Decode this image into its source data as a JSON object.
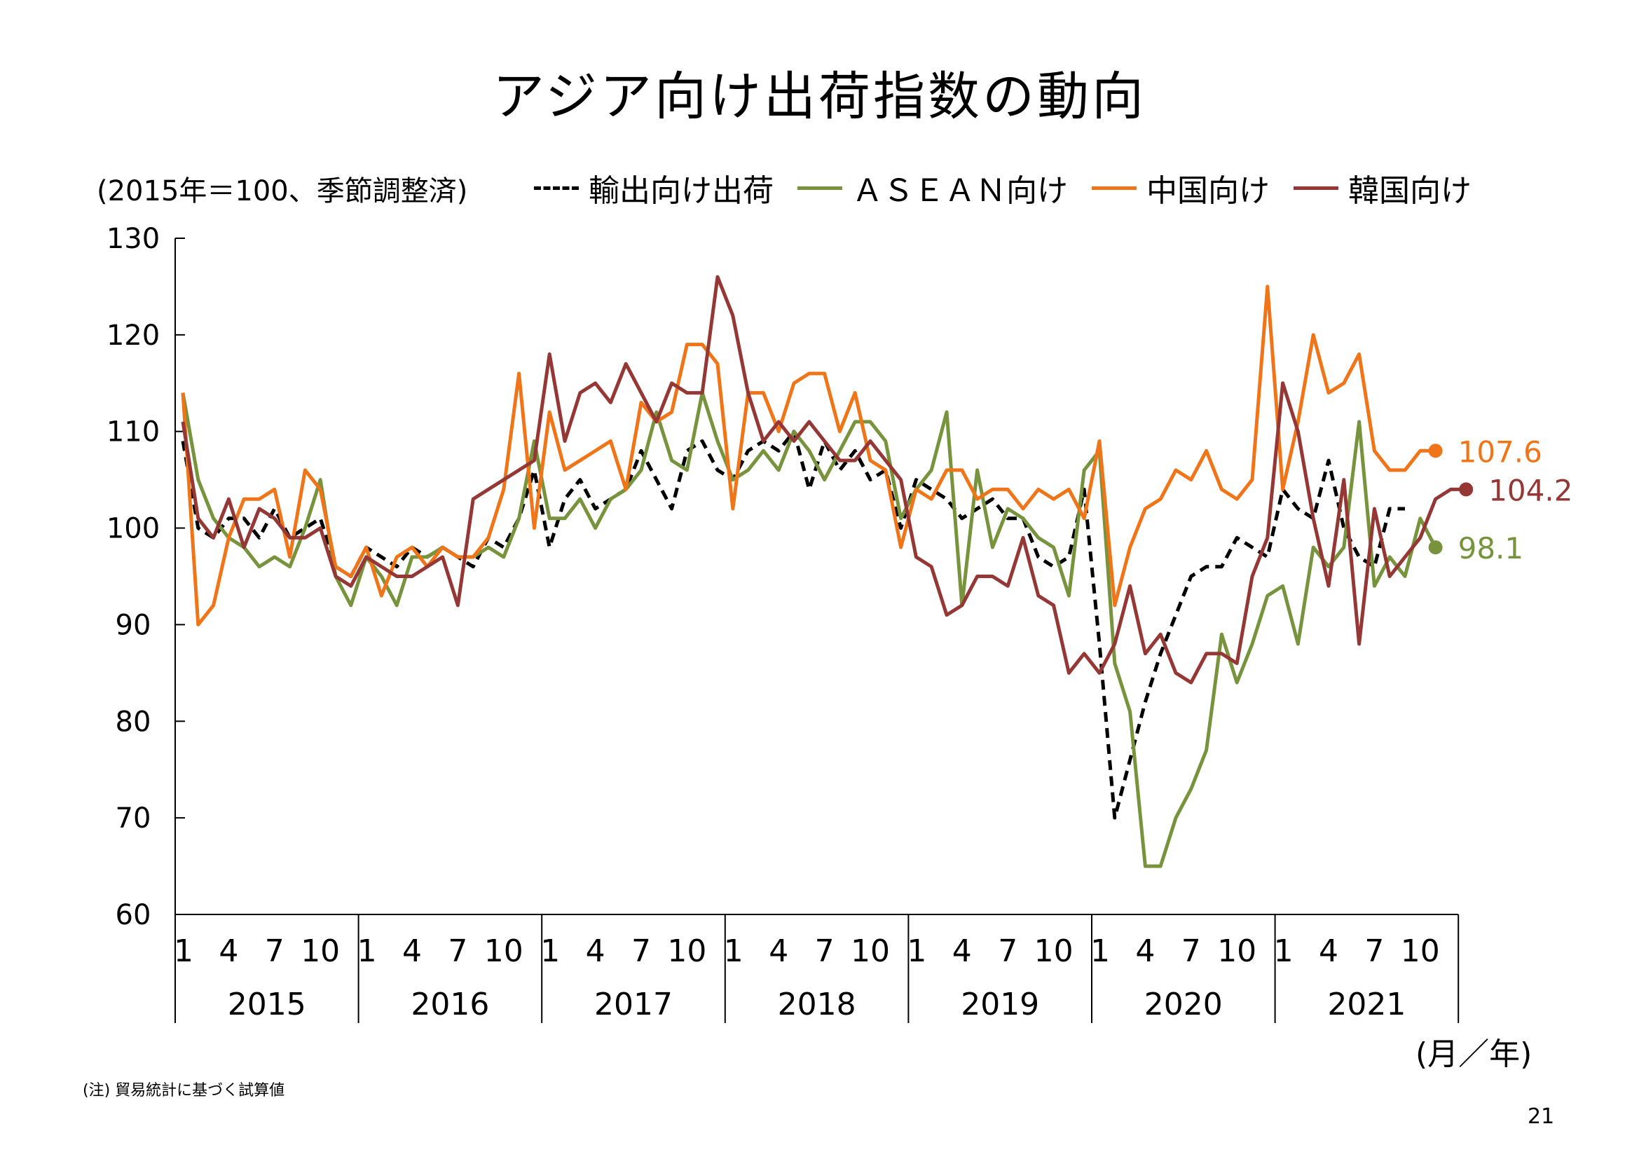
{
  "slide": {
    "title": "アジア向け出荷指数の動向",
    "unit_label": "(2015年＝100、季節調整済)",
    "x_unit_label": "(月／年)",
    "note": "(注) 貿易統計に基づく試算値",
    "page_number": "21"
  },
  "chart_data": {
    "type": "line",
    "title": "アジア向け出荷指数の動向",
    "ylabel": "(2015年＝100、季節調整済)",
    "xlabel": "(月／年)",
    "ylim": [
      60,
      130
    ],
    "yticks": [
      "60",
      "70",
      "80",
      "90",
      "100",
      "110",
      "120",
      "130"
    ],
    "month_tick_labels": [
      "1",
      "4",
      "7",
      "10"
    ],
    "years": [
      "2015",
      "2016",
      "2017",
      "2018",
      "2019",
      "2020",
      "2021"
    ],
    "grid": false,
    "legend_position": "top",
    "series": [
      {
        "name": "輸出向け出荷",
        "color": "#000000",
        "dash": true,
        "end_label": "",
        "values": [
          109,
          100,
          99,
          101,
          101,
          99,
          102,
          99,
          100,
          101,
          96,
          95,
          98,
          97,
          96,
          98,
          97,
          98,
          97,
          96,
          99,
          98,
          101,
          106,
          98,
          103,
          105,
          102,
          103,
          104,
          108,
          105,
          102,
          108,
          109,
          106,
          105,
          108,
          109,
          108,
          110,
          104,
          109,
          106,
          108,
          105,
          106,
          100,
          105,
          104,
          103,
          101,
          102,
          103,
          101,
          101,
          97,
          96,
          97,
          104,
          88,
          70,
          76,
          82,
          87,
          91,
          95,
          96,
          96,
          99,
          98,
          97,
          104,
          102,
          101,
          107,
          100,
          97,
          96,
          102,
          102
        ]
      },
      {
        "name": "ＡＳＥＡＮ向け",
        "color": "#77933C",
        "dash": false,
        "end_label": "98.1",
        "values": [
          114,
          105,
          101,
          99,
          98,
          96,
          97,
          96,
          100,
          105,
          95,
          92,
          97,
          95,
          92,
          97,
          97,
          98,
          97,
          97,
          98,
          97,
          101,
          109,
          101,
          101,
          103,
          100,
          103,
          104,
          106,
          112,
          107,
          106,
          114,
          109,
          105,
          106,
          108,
          106,
          110,
          108,
          105,
          108,
          111,
          111,
          109,
          101,
          104,
          106,
          112,
          92,
          106,
          98,
          102,
          101,
          99,
          98,
          93,
          106,
          108,
          86,
          81,
          65,
          65,
          70,
          73,
          77,
          89,
          84,
          88,
          93,
          94,
          88,
          98,
          96,
          98,
          111,
          94,
          97,
          95,
          101,
          98
        ]
      },
      {
        "name": "中国向け",
        "color": "#F07518",
        "dash": false,
        "end_label": "107.6",
        "values": [
          114,
          90,
          92,
          99,
          103,
          103,
          104,
          97,
          106,
          104,
          96,
          95,
          98,
          93,
          97,
          98,
          96,
          98,
          97,
          97,
          99,
          104,
          116,
          100,
          112,
          106,
          107,
          108,
          109,
          104,
          113,
          111,
          112,
          119,
          119,
          117,
          102,
          114,
          114,
          110,
          115,
          116,
          116,
          110,
          114,
          107,
          106,
          98,
          104,
          103,
          106,
          106,
          103,
          104,
          104,
          102,
          104,
          103,
          104,
          101,
          109,
          92,
          98,
          102,
          103,
          106,
          105,
          108,
          104,
          103,
          105,
          125,
          104,
          111,
          120,
          114,
          115,
          118,
          108,
          106,
          106,
          108,
          108
        ]
      },
      {
        "name": "韓国向け",
        "color": "#953735",
        "dash": false,
        "end_label": "104.2",
        "values": [
          111,
          101,
          99,
          103,
          98,
          102,
          101,
          99,
          99,
          100,
          95,
          94,
          97,
          96,
          95,
          95,
          96,
          97,
          92,
          103,
          104,
          105,
          106,
          107,
          118,
          109,
          114,
          115,
          113,
          117,
          114,
          111,
          115,
          114,
          114,
          126,
          122,
          114,
          109,
          111,
          109,
          111,
          109,
          107,
          107,
          109,
          107,
          105,
          97,
          96,
          91,
          92,
          95,
          95,
          94,
          99,
          93,
          92,
          85,
          87,
          85,
          88,
          94,
          87,
          89,
          85,
          84,
          87,
          87,
          86,
          95,
          99,
          115,
          110,
          101,
          94,
          105,
          88,
          102,
          95,
          97,
          99,
          103,
          104,
          104
        ]
      }
    ]
  }
}
